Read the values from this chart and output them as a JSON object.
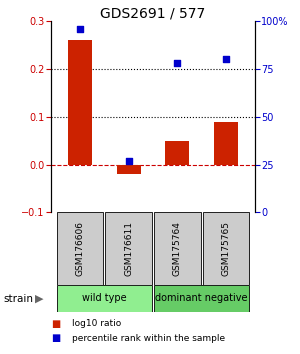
{
  "title": "GDS2691 / 577",
  "samples": [
    "GSM176606",
    "GSM176611",
    "GSM175764",
    "GSM175765"
  ],
  "log10_ratio": [
    0.26,
    -0.02,
    0.05,
    0.09
  ],
  "percentile_rank": [
    96,
    27,
    78,
    80
  ],
  "groups": [
    {
      "name": "wild type",
      "samples": [
        0,
        1
      ],
      "color": "#90EE90"
    },
    {
      "name": "dominant negative",
      "samples": [
        2,
        3
      ],
      "color": "#66CC66"
    }
  ],
  "left_ylim": [
    -0.1,
    0.3
  ],
  "right_ylim": [
    0,
    100
  ],
  "left_yticks": [
    -0.1,
    0.0,
    0.1,
    0.2,
    0.3
  ],
  "right_yticks": [
    0,
    25,
    50,
    75,
    100
  ],
  "right_yticklabels": [
    "0",
    "25",
    "50",
    "75",
    "100%"
  ],
  "hline_values": [
    0.0,
    0.1,
    0.2
  ],
  "hline_styles": [
    "--",
    ":",
    ":"
  ],
  "hline_colors": [
    "#CC0000",
    "#000000",
    "#000000"
  ],
  "bar_color": "#CC2200",
  "dot_color": "#0000CC",
  "bar_width": 0.5,
  "dot_size": 25,
  "label_log10": "log10 ratio",
  "label_percentile": "percentile rank within the sample",
  "strain_label": "strain",
  "group_box_color": "#CCCCCC",
  "title_fontsize": 10,
  "tick_fontsize": 7,
  "sample_fontsize": 6.5,
  "group_fontsize": 7
}
